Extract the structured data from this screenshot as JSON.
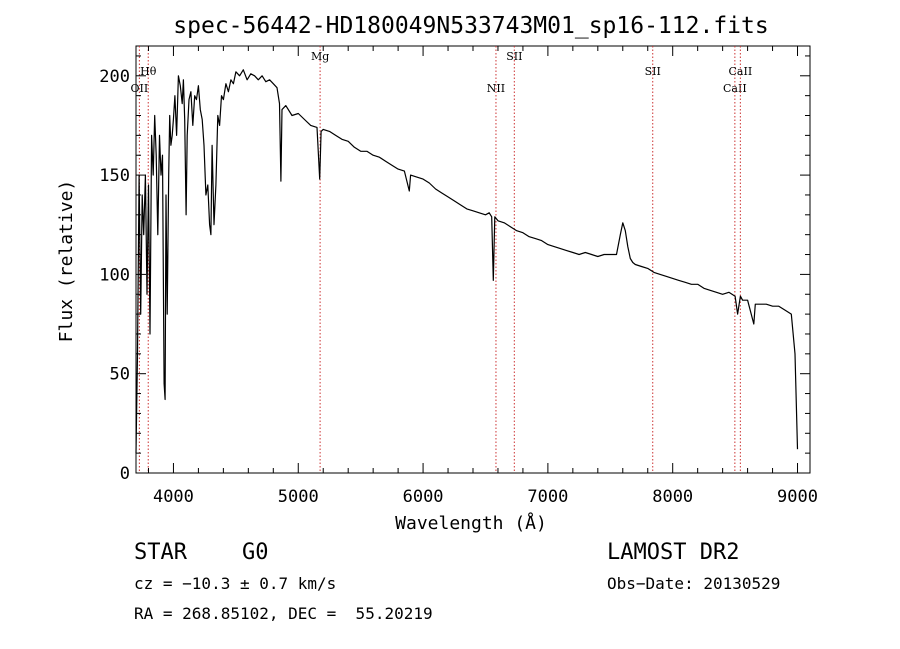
{
  "chart_data": {
    "type": "line",
    "title": "spec-56442-HD180049N533743M01_sp16-112.fits",
    "xlabel": "Wavelength (Å)",
    "ylabel": "Flux (relative)",
    "xlim": [
      3700,
      9100
    ],
    "ylim": [
      0,
      215
    ],
    "xticks": [
      4000,
      5000,
      6000,
      7000,
      8000,
      9000
    ],
    "yticks": [
      0,
      50,
      100,
      150,
      200
    ],
    "line_color": "#000000",
    "marker_color": "#cc3333",
    "series": [
      {
        "x": [
          3700,
          3712,
          3725,
          3738,
          3750,
          3762,
          3775,
          3788,
          3800,
          3812,
          3825,
          3838,
          3850,
          3862,
          3875,
          3888,
          3900,
          3912,
          3925,
          3933,
          3940,
          3950,
          3962,
          3970,
          3980,
          3990,
          4000,
          4012,
          4025,
          4040,
          4055,
          4070,
          4080,
          4090,
          4101,
          4110,
          4125,
          4140,
          4155,
          4170,
          4185,
          4200,
          4215,
          4230,
          4245,
          4260,
          4275,
          4290,
          4300,
          4310,
          4325,
          4340,
          4355,
          4370,
          4385,
          4400,
          4420,
          4440,
          4460,
          4480,
          4500,
          4530,
          4560,
          4590,
          4620,
          4650,
          4680,
          4710,
          4740,
          4770,
          4800,
          4830,
          4850,
          4861,
          4870,
          4900,
          4950,
          5000,
          5050,
          5100,
          5150,
          5172,
          5183,
          5200,
          5250,
          5300,
          5350,
          5400,
          5450,
          5500,
          5550,
          5600,
          5650,
          5700,
          5750,
          5800,
          5850,
          5890,
          5900,
          5950,
          6000,
          6050,
          6100,
          6150,
          6200,
          6250,
          6300,
          6350,
          6400,
          6450,
          6500,
          6530,
          6550,
          6563,
          6575,
          6600,
          6650,
          6700,
          6750,
          6800,
          6850,
          6900,
          6950,
          7000,
          7050,
          7100,
          7150,
          7200,
          7250,
          7300,
          7350,
          7400,
          7450,
          7500,
          7550,
          7580,
          7600,
          7620,
          7640,
          7660,
          7680,
          7700,
          7750,
          7800,
          7850,
          7900,
          7950,
          8000,
          8050,
          8100,
          8150,
          8200,
          8250,
          8300,
          8350,
          8400,
          8450,
          8500,
          8520,
          8542,
          8560,
          8600,
          8650,
          8662,
          8700,
          8750,
          8800,
          8850,
          8900,
          8950,
          8980,
          9000
        ],
        "y": [
          10,
          60,
          150,
          80,
          140,
          120,
          150,
          90,
          145,
          70,
          170,
          150,
          180,
          160,
          120,
          170,
          150,
          160,
          45,
          37,
          140,
          80,
          150,
          180,
          165,
          170,
          178,
          190,
          170,
          200,
          195,
          186,
          198,
          178,
          130,
          170,
          188,
          192,
          175,
          190,
          188,
          195,
          183,
          178,
          165,
          140,
          145,
          125,
          120,
          165,
          125,
          145,
          180,
          175,
          190,
          188,
          196,
          192,
          198,
          196,
          202,
          200,
          203,
          198,
          201,
          200,
          198,
          200,
          197,
          198,
          196,
          194,
          186,
          147,
          183,
          185,
          180,
          181,
          178,
          175,
          174,
          148,
          172,
          173,
          172,
          170,
          168,
          167,
          164,
          162,
          162,
          160,
          159,
          157,
          155,
          153,
          152,
          142,
          150,
          149,
          148,
          146,
          143,
          141,
          139,
          137,
          135,
          133,
          132,
          131,
          130,
          131,
          129,
          97,
          129,
          127,
          126,
          124,
          122,
          121,
          119,
          118,
          117,
          115,
          114,
          113,
          112,
          111,
          110,
          111,
          110,
          109,
          110,
          110,
          110,
          120,
          126,
          122,
          114,
          108,
          106,
          105,
          104,
          103,
          101,
          100,
          99,
          98,
          97,
          96,
          95,
          95,
          93,
          92,
          91,
          90,
          91,
          89,
          80,
          89,
          87,
          87,
          75,
          85,
          85,
          85,
          84,
          84,
          82,
          80,
          60,
          12
        ]
      }
    ],
    "markers": [
      {
        "label": "Hθ",
        "x": 3798
      },
      {
        "label": "OII",
        "x": 3727
      },
      {
        "label": "Mg",
        "x": 5175
      },
      {
        "label": "NII",
        "x": 6584
      },
      {
        "label": "SII",
        "x": 6731
      },
      {
        "label": "SII",
        "x": 7840
      },
      {
        "label": "CaII",
        "x": 8498
      },
      {
        "label": "CaII",
        "x": 8542
      }
    ]
  },
  "info": {
    "object_class": "STAR",
    "subclass": "G0",
    "survey": "LAMOST DR2",
    "redshift": "cz = −10.3 ± 0.7 km/s",
    "obs_date": "Obs−Date: 20130529",
    "coords": "RA = 268.85102, DEC =  55.20219"
  }
}
